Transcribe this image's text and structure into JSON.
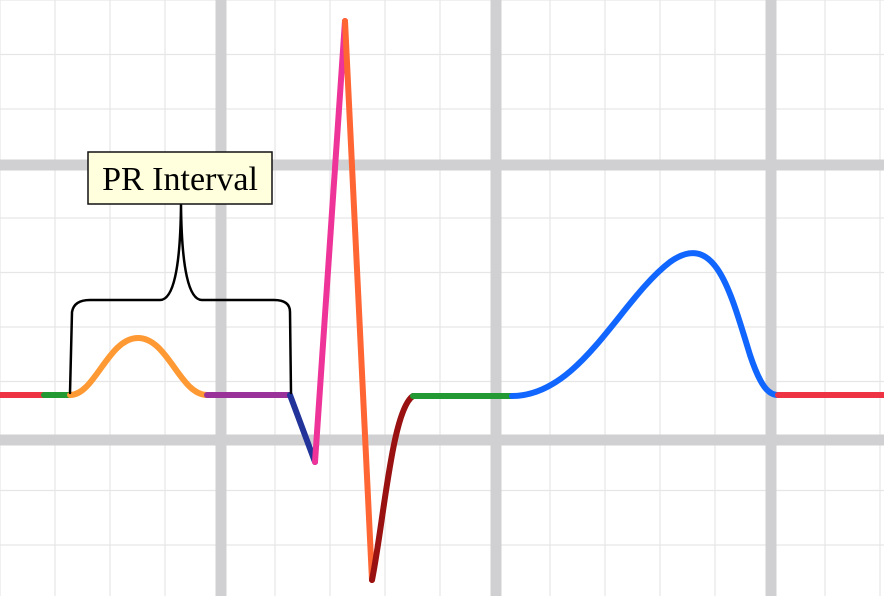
{
  "annotation": {
    "label": "PR Interval"
  },
  "colors": {
    "background": "#ffffff",
    "grid_minor": "#e6e6e6",
    "grid_major": "#d0d0d2",
    "label_fill": "#ffffdd",
    "baseline_left": "#ee3344",
    "pre_p": "#229933",
    "p_wave": "#ff9933",
    "pr_segment": "#993399",
    "q_wave": "#223399",
    "r_upstroke": "#ee3399",
    "r_downstroke": "#ff6633",
    "s_wave": "#991111",
    "st_segment": "#229933",
    "t_wave": "#1166ff",
    "baseline_right": "#ee3344"
  }
}
